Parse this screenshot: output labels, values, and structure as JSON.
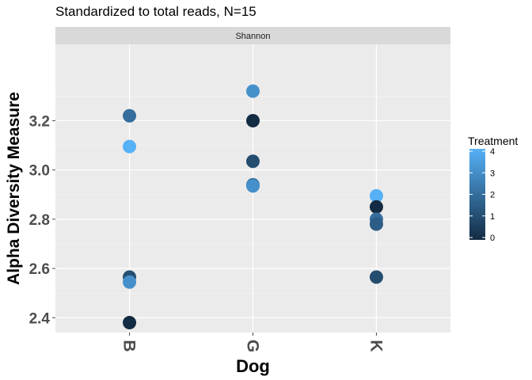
{
  "chart_data": {
    "type": "scatter",
    "title": "Standardized to total reads, N=15",
    "facet_label": "Shannon",
    "xlabel": "Dog",
    "ylabel": "Alpha Diversity Measure",
    "categories": [
      "B",
      "G",
      "K"
    ],
    "ylim": [
      2.34,
      3.51
    ],
    "y_ticks": [
      2.4,
      2.6,
      2.8,
      3.0,
      3.2
    ],
    "y_tick_labels": [
      "2.4",
      "2.6",
      "2.8",
      "3.0",
      "3.2"
    ],
    "grid": true,
    "legend": {
      "title": "Treatment",
      "placement": "right",
      "min": 0,
      "max": 4,
      "ticks": [
        0,
        1,
        2,
        3,
        4
      ],
      "tick_labels": [
        "0",
        "1",
        "2",
        "3",
        "4"
      ],
      "low_color": "#132b43",
      "high_color": "#56b1f7"
    },
    "points": [
      {
        "x": "B",
        "y": 3.22,
        "treatment": 2
      },
      {
        "x": "B",
        "y": 3.095,
        "treatment": 4
      },
      {
        "x": "B",
        "y": 2.565,
        "treatment": 1
      },
      {
        "x": "B",
        "y": 2.545,
        "treatment": 3
      },
      {
        "x": "B",
        "y": 2.38,
        "treatment": 0
      },
      {
        "x": "G",
        "y": 3.32,
        "treatment": 3
      },
      {
        "x": "G",
        "y": 3.2,
        "treatment": 0
      },
      {
        "x": "G",
        "y": 3.035,
        "treatment": 1
      },
      {
        "x": "G",
        "y": 2.94,
        "treatment": 2
      },
      {
        "x": "G",
        "y": 2.935,
        "treatment": 3
      },
      {
        "x": "K",
        "y": 2.895,
        "treatment": 4
      },
      {
        "x": "K",
        "y": 2.85,
        "treatment": 0
      },
      {
        "x": "K",
        "y": 2.8,
        "treatment": 2
      },
      {
        "x": "K",
        "y": 2.78,
        "treatment": 1.5
      },
      {
        "x": "K",
        "y": 2.565,
        "treatment": 1
      }
    ]
  }
}
